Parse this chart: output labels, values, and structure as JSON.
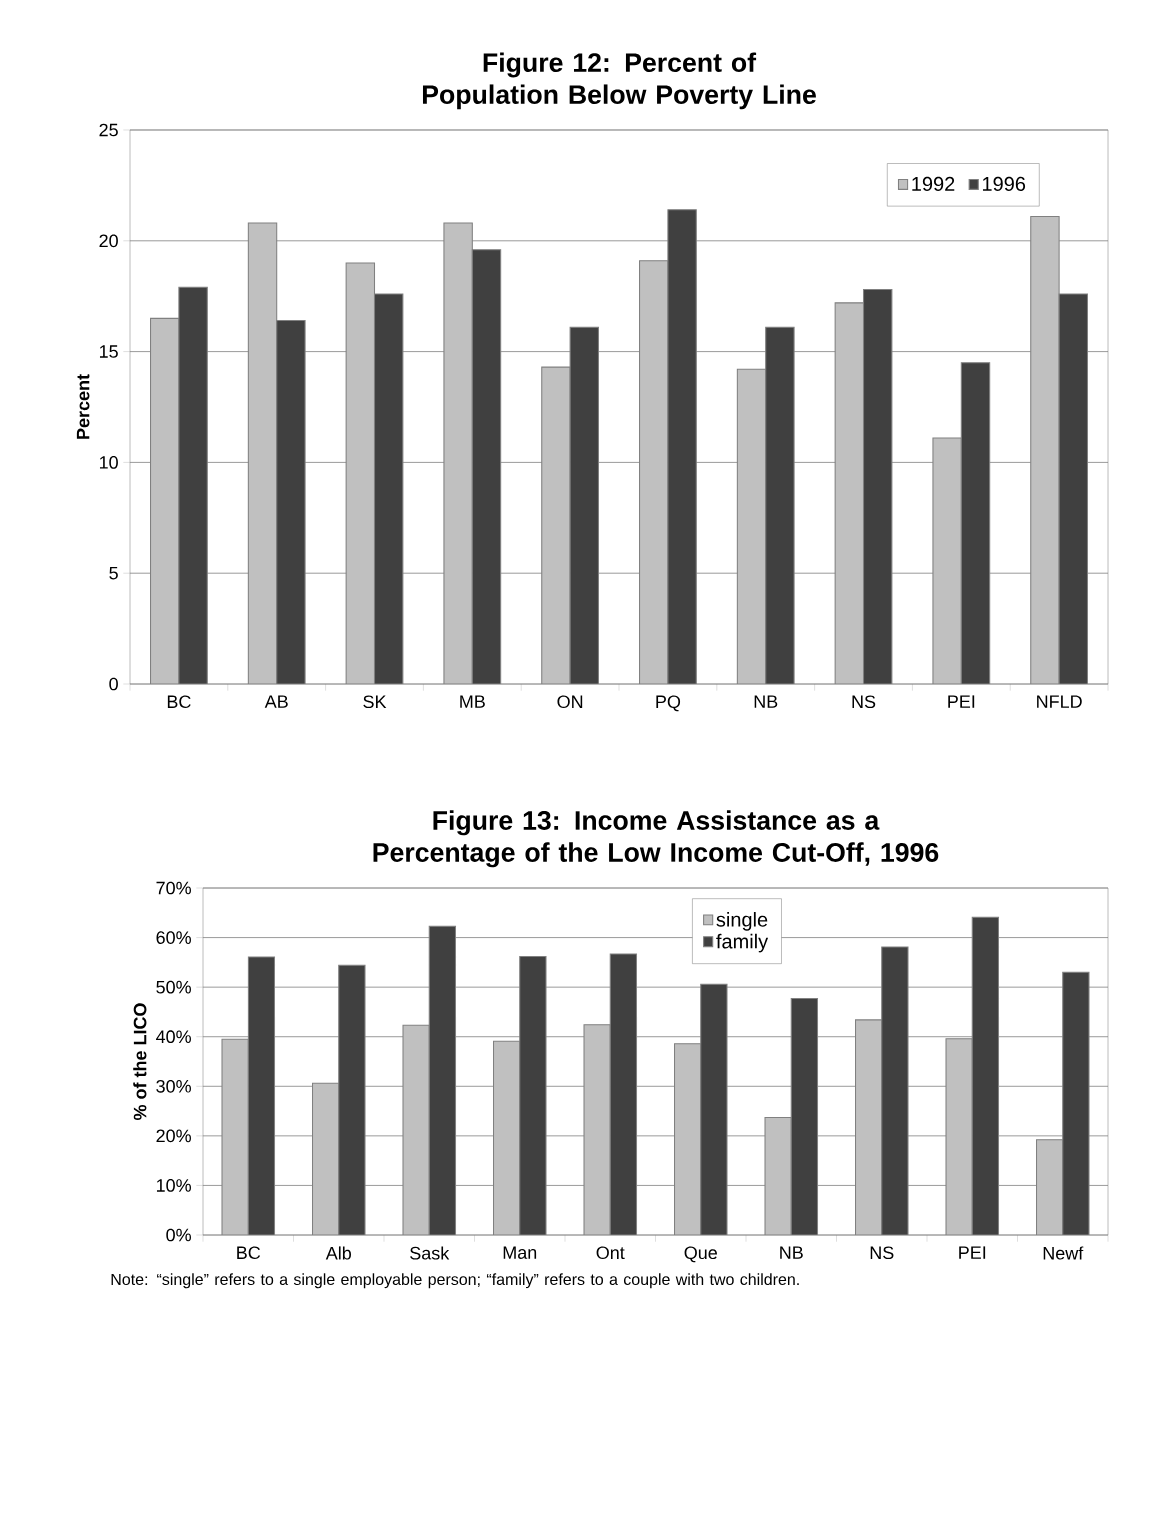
{
  "chart_data": [
    {
      "type": "bar",
      "title": "Figure 12:  Percent of Population Below Poverty Line",
      "ylabel": "Percent",
      "categories": [
        "BC",
        "AB",
        "SK",
        "MB",
        "ON",
        "PQ",
        "NB",
        "NS",
        "PEI",
        "NFLD"
      ],
      "series": [
        {
          "name": "1992",
          "color": "#c0c0c0",
          "values": [
            16.5,
            20.8,
            19.0,
            20.8,
            14.3,
            19.1,
            14.2,
            17.2,
            11.1,
            21.1
          ]
        },
        {
          "name": "1996",
          "color": "#404040",
          "values": [
            17.9,
            16.4,
            17.6,
            19.6,
            16.1,
            21.4,
            16.1,
            17.8,
            14.5,
            17.6
          ]
        }
      ],
      "ylim": [
        0,
        25
      ],
      "yticks": [
        0,
        5,
        10,
        15,
        20,
        25
      ],
      "grid": "y",
      "legend": "top right"
    },
    {
      "type": "bar",
      "title": "Figure 13:  Income Assistance as a Percentage of the Low Income Cut-Off, 1996",
      "ylabel": "% of the LICO",
      "categories": [
        "BC",
        "Alb",
        "Sask",
        "Man",
        "Ont",
        "Que",
        "NB",
        "NS",
        "PEI",
        "Newf"
      ],
      "series": [
        {
          "name": "single",
          "color": "#c0c0c0",
          "values": [
            39.5,
            30.6,
            42.3,
            39.1,
            42.4,
            38.6,
            23.7,
            43.4,
            39.6,
            19.2
          ]
        },
        {
          "name": "family",
          "color": "#404040",
          "values": [
            56.1,
            54.4,
            62.3,
            56.2,
            56.7,
            50.6,
            47.7,
            58.1,
            64.1,
            53.0
          ]
        }
      ],
      "ylim": [
        0,
        70
      ],
      "yticks": [
        {
          "value": 0,
          "label": "0%"
        },
        {
          "value": 10,
          "label": "10%"
        },
        {
          "value": 20,
          "label": "20%"
        },
        {
          "value": 30,
          "label": "30%"
        },
        {
          "value": 40,
          "label": "40%"
        },
        {
          "value": 50,
          "label": "50%"
        },
        {
          "value": 60,
          "label": "60%"
        },
        {
          "value": 70,
          "label": "70%"
        }
      ],
      "grid": "y",
      "legend": "top",
      "annotations": [
        "Note:  “single” refers to a single employable person; “family” refers to a couple with two children."
      ]
    }
  ]
}
